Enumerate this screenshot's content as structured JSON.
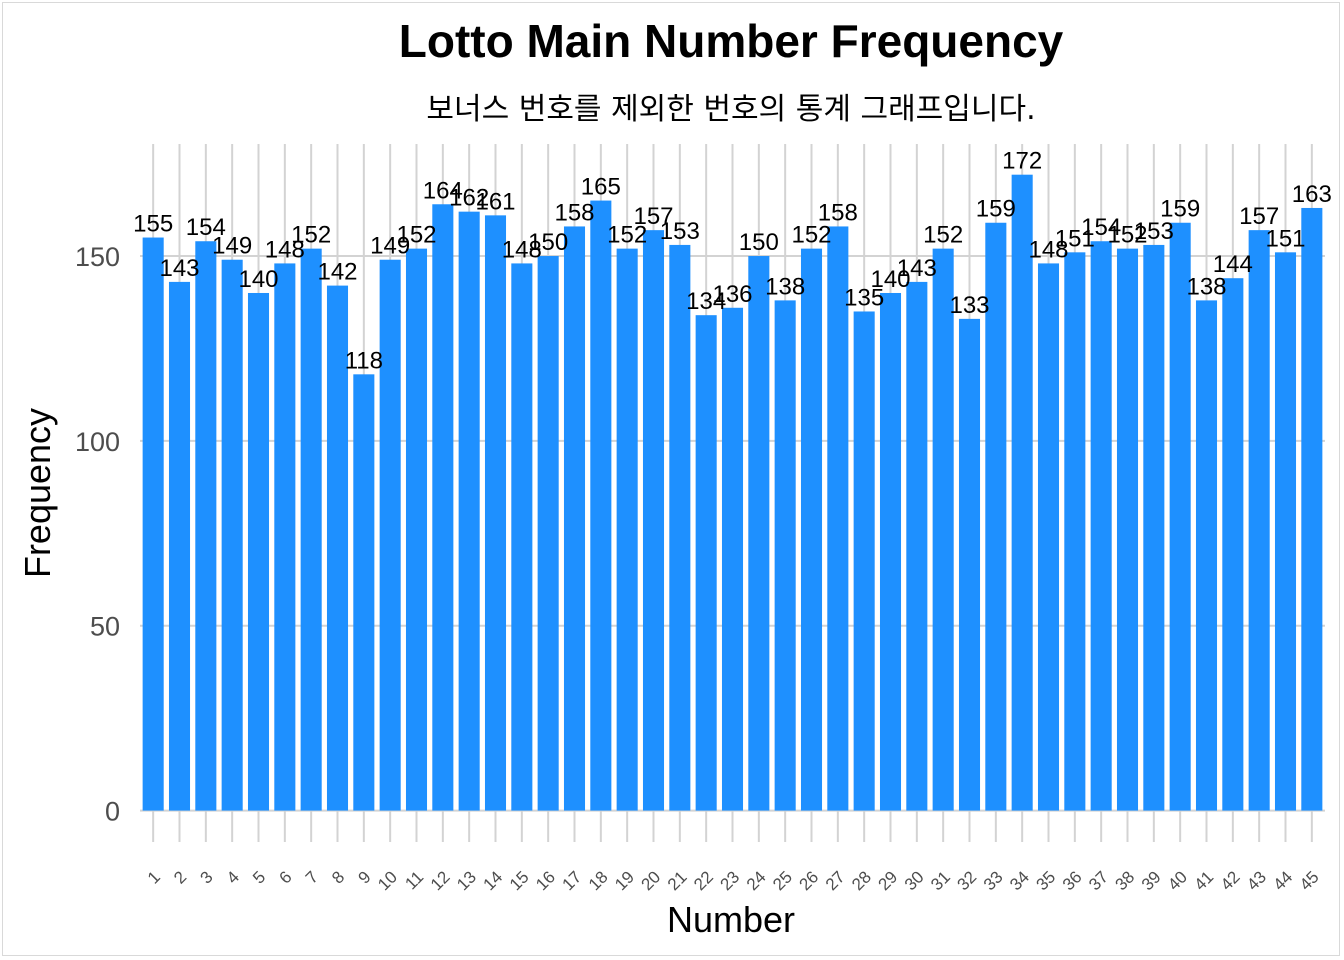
{
  "chart_data": {
    "type": "bar",
    "title": "Lotto Main Number Frequency",
    "subtitle": "보너스 번호를 제외한 번호의 통계 그래프입니다.",
    "xlabel": "Number",
    "ylabel": "Frequency",
    "categories": [
      "1",
      "2",
      "3",
      "4",
      "5",
      "6",
      "7",
      "8",
      "9",
      "10",
      "11",
      "12",
      "13",
      "14",
      "15",
      "16",
      "17",
      "18",
      "19",
      "20",
      "21",
      "22",
      "23",
      "24",
      "25",
      "26",
      "27",
      "28",
      "29",
      "30",
      "31",
      "32",
      "33",
      "34",
      "35",
      "36",
      "37",
      "38",
      "39",
      "40",
      "41",
      "42",
      "43",
      "44",
      "45"
    ],
    "values": [
      155,
      143,
      154,
      149,
      140,
      148,
      152,
      142,
      118,
      149,
      152,
      164,
      162,
      161,
      148,
      150,
      158,
      165,
      152,
      157,
      153,
      134,
      136,
      150,
      138,
      152,
      158,
      135,
      140,
      143,
      152,
      133,
      159,
      172,
      148,
      151,
      154,
      152,
      153,
      159,
      138,
      144,
      157,
      151,
      163
    ],
    "yticks": [
      0,
      50,
      100,
      150
    ],
    "ylim": [
      -8.5,
      180.3
    ],
    "bar_color": "#1E90FF",
    "grid": true
  }
}
